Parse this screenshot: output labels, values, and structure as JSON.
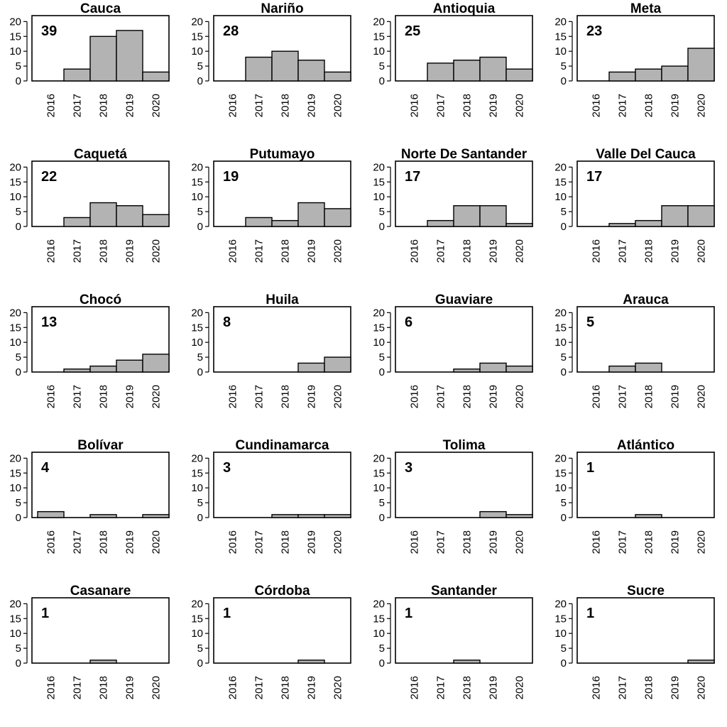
{
  "chart_data": {
    "type": "bar",
    "categories": [
      "2016",
      "2017",
      "2018",
      "2019",
      "2020"
    ],
    "ylim": [
      0,
      22
    ],
    "yticks": [
      0,
      5,
      10,
      15,
      20
    ],
    "panels": [
      {
        "title": "Cauca",
        "total": "39",
        "values": [
          0,
          4,
          15,
          17,
          3
        ]
      },
      {
        "title": "Nariño",
        "total": "28",
        "values": [
          0,
          8,
          10,
          7,
          3
        ]
      },
      {
        "title": "Antioquia",
        "total": "25",
        "values": [
          0,
          6,
          7,
          8,
          4
        ]
      },
      {
        "title": "Meta",
        "total": "23",
        "values": [
          0,
          3,
          4,
          5,
          11
        ]
      },
      {
        "title": "Caquetá",
        "total": "22",
        "values": [
          0,
          3,
          8,
          7,
          4
        ]
      },
      {
        "title": "Putumayo",
        "total": "19",
        "values": [
          0,
          3,
          2,
          8,
          6
        ]
      },
      {
        "title": "Norte De Santander",
        "total": "17",
        "values": [
          0,
          2,
          7,
          7,
          1
        ]
      },
      {
        "title": "Valle Del Cauca",
        "total": "17",
        "values": [
          0,
          1,
          2,
          7,
          7
        ]
      },
      {
        "title": "Chocó",
        "total": "13",
        "values": [
          0,
          1,
          2,
          4,
          6
        ]
      },
      {
        "title": "Huila",
        "total": "8",
        "values": [
          0,
          0,
          0,
          3,
          5
        ]
      },
      {
        "title": "Guaviare",
        "total": "6",
        "values": [
          0,
          0,
          1,
          3,
          2
        ]
      },
      {
        "title": "Arauca",
        "total": "5",
        "values": [
          0,
          2,
          3,
          0,
          0
        ]
      },
      {
        "title": "Bolívar",
        "total": "4",
        "values": [
          2,
          0,
          1,
          0,
          1
        ]
      },
      {
        "title": "Cundinamarca",
        "total": "3",
        "values": [
          0,
          0,
          1,
          1,
          1
        ]
      },
      {
        "title": "Tolima",
        "total": "3",
        "values": [
          0,
          0,
          0,
          2,
          1
        ]
      },
      {
        "title": "Atlántico",
        "total": "1",
        "values": [
          0,
          0,
          1,
          0,
          0
        ]
      },
      {
        "title": "Casanare",
        "total": "1",
        "values": [
          0,
          0,
          1,
          0,
          0
        ]
      },
      {
        "title": "Córdoba",
        "total": "1",
        "values": [
          0,
          0,
          0,
          1,
          0
        ]
      },
      {
        "title": "Santander",
        "total": "1",
        "values": [
          0,
          0,
          1,
          0,
          0
        ]
      },
      {
        "title": "Sucre",
        "total": "1",
        "values": [
          0,
          0,
          0,
          0,
          1
        ]
      }
    ],
    "colors": {
      "bar_fill": "#b3b3b3",
      "bar_stroke": "#000000"
    },
    "grid": false,
    "legend": "none"
  }
}
